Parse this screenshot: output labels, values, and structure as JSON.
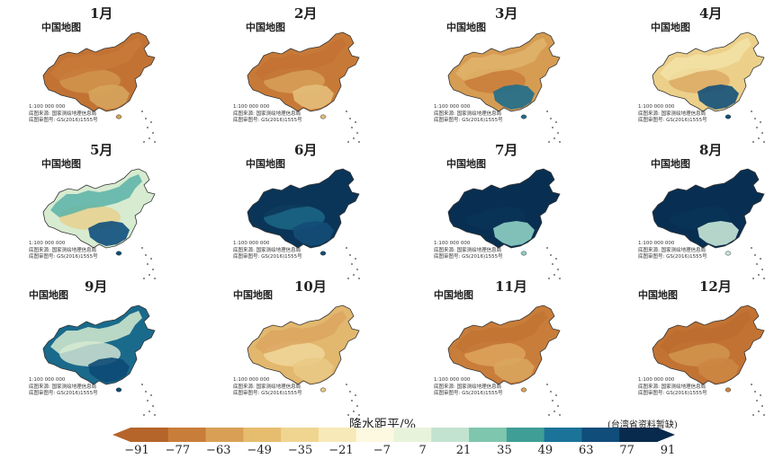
{
  "panels": [
    {
      "month": "1月",
      "map_title": "中国地图",
      "fill": "#c27334",
      "accent": "#d39a52",
      "north_fill": "#c87a38",
      "south_fill": "#d6a45c",
      "scale": "1:100 000 000",
      "source": "底图来源: 国家测绘地理信息局",
      "approval": "底图审图号: GS(2016)1555号"
    },
    {
      "month": "2月",
      "map_title": "中国地图",
      "fill": "#c77a38",
      "accent": "#d9a55d",
      "north_fill": "#c37234",
      "south_fill": "#e3be7a",
      "scale": "1:100 000 000",
      "source": "底图来源: 国家测绘地理信息局",
      "approval": "底图审图号: GS(2016)1555号"
    },
    {
      "month": "3月",
      "map_title": "中国地图",
      "fill": "#d69c52",
      "accent": "#c77a38",
      "north_fill": "#e0b46c",
      "south_fill": "#1f6e8c",
      "scale": "1:100 000 000",
      "source": "底图来源: 国家测绘地理信息局",
      "approval": "底图审图号: GS(2016)1555号"
    },
    {
      "month": "4月",
      "map_title": "中国地图",
      "fill": "#ecd08a",
      "accent": "#d9a55d",
      "north_fill": "#f3e2a6",
      "south_fill": "#14507a",
      "scale": "1:100 000 000",
      "source": "底图来源: 国家测绘地理信息局",
      "approval": "底图审图号: GS(2016)1555号"
    },
    {
      "month": "5月",
      "map_title": "中国地图",
      "fill": "#d7ebd0",
      "accent": "#e9cd86",
      "north_fill": "#5bb3a8",
      "south_fill": "#0e4f7c",
      "scale": "1:100 000 000",
      "source": "底图来源: 国家测绘地理信息局",
      "approval": "底图审图号: GS(2016)1555号"
    },
    {
      "month": "6月",
      "map_title": "中国地图",
      "fill": "#0a3558",
      "accent": "#1f6e8c",
      "north_fill": "#0a3558",
      "south_fill": "#134d78",
      "scale": "1:100 000 000",
      "source": "底图来源: 国家测绘地理信息局",
      "approval": "底图审图号: GS(2016)1555号"
    },
    {
      "month": "7月",
      "map_title": "中国地图",
      "fill": "#082f52",
      "accent": "#0a3558",
      "north_fill": "#082f52",
      "south_fill": "#8fd0c3",
      "scale": "1:100 000 000",
      "source": "底图来源: 国家测绘地理信息局",
      "approval": "底图审图号: GS(2016)1555号"
    },
    {
      "month": "8月",
      "map_title": "中国地图",
      "fill": "#082f52",
      "accent": "#0a3558",
      "north_fill": "#082f52",
      "south_fill": "#c9e8d8",
      "scale": "1:100 000 000",
      "source": "底图来源: 国家测绘地理信息局",
      "approval": "底图审图号: GS(2016)1555号"
    },
    {
      "month": "9月",
      "map_title": "中国地图",
      "fill": "#1a6a8c",
      "accent": "#e8f3dc",
      "north_fill": "#d7ebd0",
      "south_fill": "#0d4a75",
      "scale": "1:100 000 000",
      "source": "底图来源: 国家测绘地理信息局",
      "approval": "底图审图号: GS(2016)1555号"
    },
    {
      "month": "10月",
      "map_title": "中国地图",
      "fill": "#e2b76e",
      "accent": "#f1dba0",
      "north_fill": "#dba660",
      "south_fill": "#e9c985",
      "scale": "1:100 000 000",
      "source": "底图来源: 国家测绘地理信息局",
      "approval": "底图审图号: GS(2016)1555号"
    },
    {
      "month": "11月",
      "map_title": "中国地图",
      "fill": "#c97d3a",
      "accent": "#dfaa62",
      "north_fill": "#c27334",
      "south_fill": "#d9a55d",
      "scale": "1:100 000 000",
      "source": "底图来源: 国家测绘地理信息局",
      "approval": "底图审图号: GS(2016)1555号"
    },
    {
      "month": "12月",
      "map_title": "中国地图",
      "fill": "#c27334",
      "accent": "#d39a52",
      "north_fill": "#bd6c30",
      "south_fill": "#cd8642",
      "scale": "1:100 000 000",
      "source": "底图来源: 国家测绘地理信息局",
      "approval": "底图审图号: GS(2016)1555号"
    }
  ],
  "legend": {
    "title": "降水距平/%",
    "note": "(台湾省资料暂缺)",
    "ticks": [
      "−91",
      "−77",
      "−63",
      "−49",
      "−35",
      "−21",
      "−7",
      "7",
      "21",
      "35",
      "49",
      "63",
      "77",
      "91"
    ],
    "colors": [
      "#b5642a",
      "#c97d3a",
      "#d9a055",
      "#e6bc6f",
      "#f0d591",
      "#f7e9b8",
      "#fdf8e0",
      "#e8f3dc",
      "#c2e3cf",
      "#7fc6ae",
      "#3f9e96",
      "#1c7399",
      "#114d7a",
      "#082a4c"
    ]
  }
}
